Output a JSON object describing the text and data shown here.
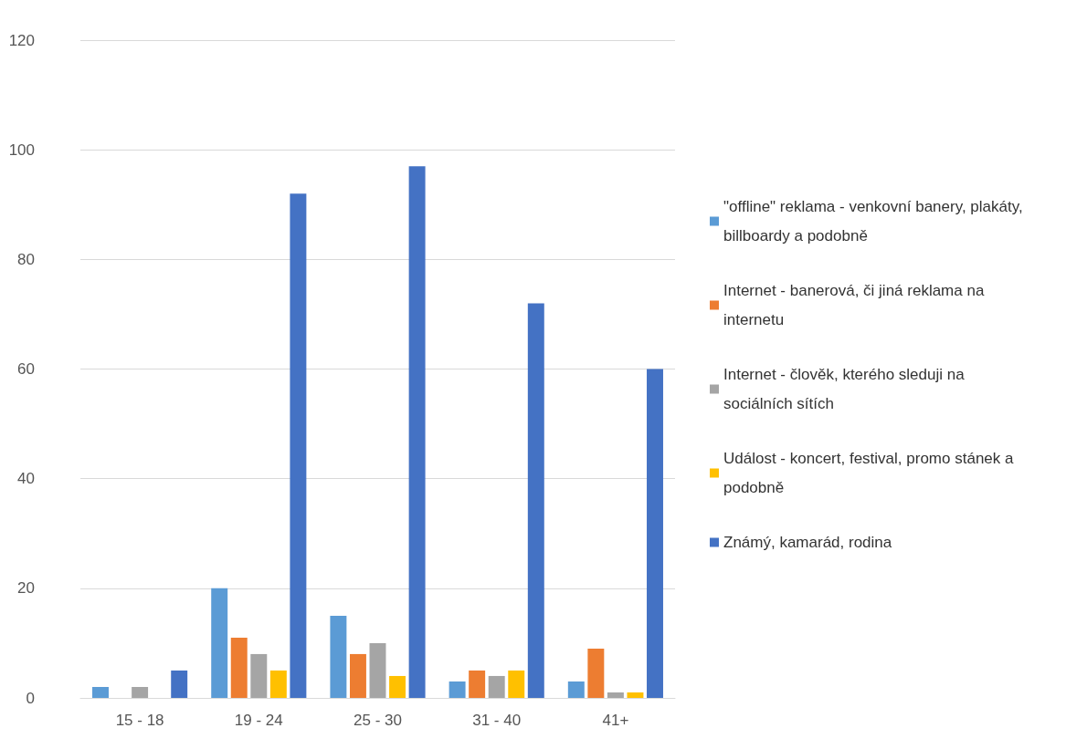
{
  "chart_data": {
    "type": "bar",
    "categories": [
      "15 - 18",
      "19 - 24",
      "25 - 30",
      "31 - 40",
      "41+"
    ],
    "series": [
      {
        "name": "\"offline\" reklama - venkovní banery, plakáty, billboardy a podobně",
        "color": "#5b9bd5",
        "values": [
          2,
          20,
          15,
          3,
          3
        ]
      },
      {
        "name": "Internet - banerová, či jiná reklama na internetu",
        "color": "#ed7d31",
        "values": [
          0,
          11,
          8,
          5,
          9
        ]
      },
      {
        "name": "Internet - člověk, kterého sleduji na sociálních sítích",
        "color": "#a5a5a5",
        "values": [
          2,
          8,
          10,
          4,
          1
        ]
      },
      {
        "name": "Událost - koncert, festival, promo stánek a podobně",
        "color": "#ffc000",
        "values": [
          0,
          5,
          4,
          5,
          1
        ]
      },
      {
        "name": "Známý, kamarád, rodina",
        "color": "#4472c4",
        "values": [
          5,
          92,
          97,
          72,
          60
        ]
      }
    ],
    "ylim": [
      0,
      120
    ],
    "yticks": [
      0,
      20,
      40,
      60,
      80,
      100,
      120
    ],
    "grid": "y",
    "legend": "right"
  }
}
